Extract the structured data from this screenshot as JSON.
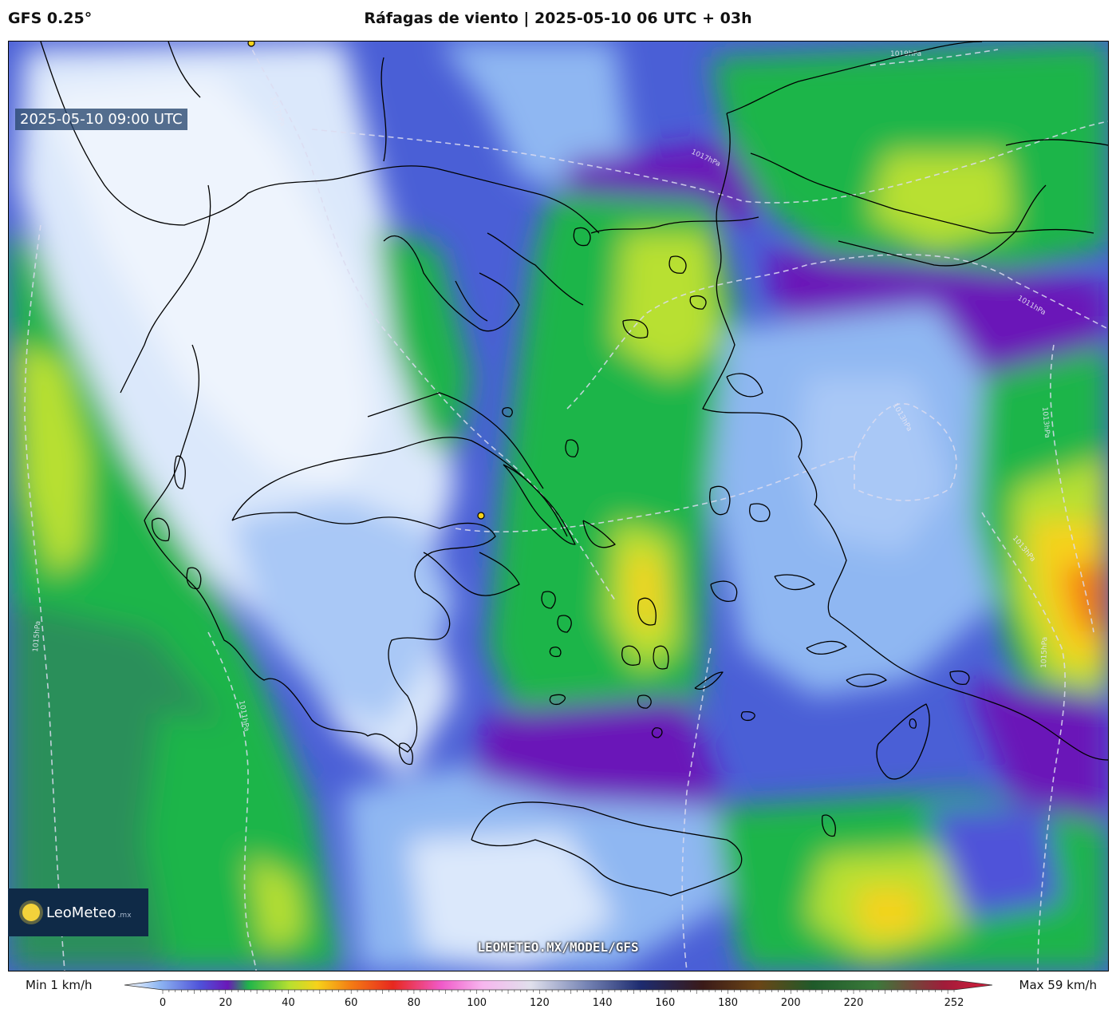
{
  "header": {
    "model": "GFS 0.25°",
    "title": "Ráfagas de viento | 2025-05-10 06 UTC + 03h"
  },
  "map": {
    "valid_time": "2025-05-10 09:00 UTC",
    "watermark_url": "LEOMETEO.MX/MODEL/GFS",
    "logo": {
      "name": "LeoMeteo",
      "tld": ".mx"
    },
    "isobar_labels": [
      "1019hPa",
      "1017hPa",
      "1017hPa",
      "1011hPa",
      "1013hPa",
      "1013hPa",
      "1015hPa",
      "1013hPa",
      "1015hPa",
      "1011hPa"
    ]
  },
  "colorbar": {
    "min_label": "Min 1 km/h",
    "max_label": "Max 59 km/h",
    "ticks": [
      "0",
      "20",
      "40",
      "60",
      "80",
      "100",
      "120",
      "140",
      "160",
      "180",
      "200",
      "220",
      "252"
    ],
    "tick_values": [
      0,
      20,
      40,
      60,
      80,
      100,
      120,
      140,
      160,
      180,
      200,
      220,
      252
    ],
    "range": [
      0,
      252
    ],
    "stops": [
      {
        "v": 0,
        "c": "#ffffff"
      },
      {
        "v": 10,
        "c": "#8fb7f2"
      },
      {
        "v": 22,
        "c": "#4f52d9"
      },
      {
        "v": 30,
        "c": "#6a18b8"
      },
      {
        "v": 36,
        "c": "#1fb54a"
      },
      {
        "v": 48,
        "c": "#b8e030"
      },
      {
        "v": 56,
        "c": "#f6d21a"
      },
      {
        "v": 66,
        "c": "#f47a14"
      },
      {
        "v": 78,
        "c": "#e8281f"
      },
      {
        "v": 92,
        "c": "#f05ac9"
      },
      {
        "v": 104,
        "c": "#f7b6ee"
      },
      {
        "v": 118,
        "c": "#e0e0ec"
      },
      {
        "v": 134,
        "c": "#7785b5"
      },
      {
        "v": 150,
        "c": "#1d2b6f"
      },
      {
        "v": 168,
        "c": "#3a1a18"
      },
      {
        "v": 184,
        "c": "#6b4516"
      },
      {
        "v": 200,
        "c": "#1f5a2a"
      },
      {
        "v": 218,
        "c": "#3a7a3a"
      },
      {
        "v": 238,
        "c": "#a01c3a"
      },
      {
        "v": 252,
        "c": "#d81e3c"
      }
    ]
  },
  "colors": {
    "calm": "#dbe8fb",
    "light": "#8fb7f2",
    "moderate": "#4f52d9",
    "purple": "#6a18b8",
    "green": "#1fb54a",
    "dark_green": "#2c8f5a",
    "yellow_green": "#b8e030",
    "yellow": "#f6d21a",
    "orange": "#f47a14",
    "coast": "#000000",
    "isobar": "#dcdcf0"
  }
}
